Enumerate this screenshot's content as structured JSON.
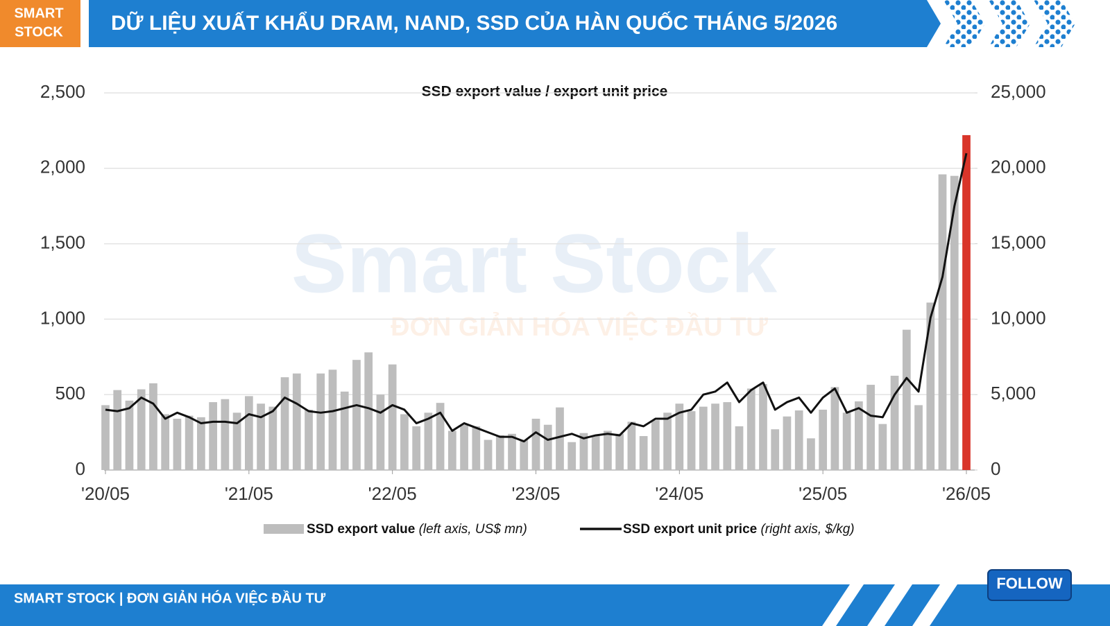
{
  "header": {
    "brand": [
      "SMART",
      "STOCK"
    ],
    "title": "DỮ LIỆU XUẤT KHẨU DRAM, NAND, SSD CỦA HÀN QUỐC THÁNG 5/2026"
  },
  "watermark": {
    "brand": "Smart Stock",
    "tagline": "ĐƠN GIẢN HÓA VIỆC ĐẦU TƯ"
  },
  "chart_data": {
    "type": "combo",
    "title": "SSD export value / export unit price",
    "categories": [
      "'20/05",
      null,
      null,
      null,
      null,
      null,
      null,
      null,
      null,
      null,
      null,
      null,
      "'21/05",
      null,
      null,
      null,
      null,
      null,
      null,
      null,
      null,
      null,
      null,
      null,
      "'22/05",
      null,
      null,
      null,
      null,
      null,
      null,
      null,
      null,
      null,
      null,
      null,
      "'23/05",
      null,
      null,
      null,
      null,
      null,
      null,
      null,
      null,
      null,
      null,
      null,
      "'24/05",
      null,
      null,
      null,
      null,
      null,
      null,
      null,
      null,
      null,
      null,
      null,
      "'25/05",
      null,
      null,
      null,
      null,
      null,
      null,
      null,
      null,
      null,
      null,
      null,
      "'26/05"
    ],
    "series": [
      {
        "name": "SSD export value",
        "note": "(left axis, US$ mn)",
        "color": "#bdbdbd",
        "last_color": "#d9352a",
        "values": [
          430,
          530,
          460,
          535,
          575,
          370,
          340,
          360,
          350,
          450,
          470,
          380,
          490,
          440,
          420,
          615,
          640,
          400,
          640,
          665,
          520,
          730,
          780,
          500,
          700,
          370,
          290,
          380,
          445,
          260,
          300,
          290,
          200,
          230,
          240,
          200,
          340,
          300,
          415,
          185,
          245,
          230,
          260,
          240,
          320,
          225,
          330,
          380,
          440,
          390,
          420,
          440,
          450,
          290,
          540,
          570,
          270,
          355,
          395,
          210,
          400,
          550,
          380,
          455,
          565,
          305,
          625,
          930,
          430,
          1110,
          1960,
          1950,
          2220
        ]
      },
      {
        "name": "SSD export unit price",
        "note": "(right axis, $/kg)",
        "color": "#111111",
        "axis": "y2",
        "values": [
          4000,
          3900,
          4100,
          4800,
          4400,
          3400,
          3800,
          3500,
          3100,
          3200,
          3200,
          3100,
          3700,
          3500,
          3900,
          4800,
          4400,
          3900,
          3800,
          3900,
          4100,
          4300,
          4100,
          3800,
          4300,
          4000,
          3100,
          3400,
          3800,
          2600,
          3100,
          2800,
          2500,
          2200,
          2200,
          1900,
          2500,
          2000,
          2200,
          2400,
          2100,
          2300,
          2400,
          2300,
          3100,
          2900,
          3400,
          3400,
          3800,
          4000,
          5000,
          5200,
          5800,
          4500,
          5300,
          5800,
          4000,
          4500,
          4800,
          3800,
          4800,
          5400,
          3800,
          4100,
          3600,
          3500,
          5000,
          6100,
          5200,
          10100,
          12800,
          17500,
          21000
        ]
      }
    ],
    "ylim": [
      0,
      2500
    ],
    "yticks": [
      0,
      500,
      {
        "value": 1000,
        "label": "1,000"
      },
      {
        "value": 1500,
        "label": "1,500"
      },
      {
        "value": 2000,
        "label": "2,000"
      },
      {
        "value": 2500,
        "label": "2,500"
      }
    ],
    "y2lim": [
      0,
      25000
    ],
    "y2ticks": [
      0,
      {
        "value": 5000,
        "label": "5,000"
      },
      {
        "value": 10000,
        "label": "10,000"
      },
      {
        "value": 15000,
        "label": "15,000"
      },
      {
        "value": 20000,
        "label": "20,000"
      },
      {
        "value": 25000,
        "label": "25,000"
      }
    ],
    "grid": true
  },
  "footer": {
    "text": "SMART STOCK | ĐƠN GIẢN HÓA VIỆC ĐẦU TƯ",
    "button": "FOLLOW"
  }
}
